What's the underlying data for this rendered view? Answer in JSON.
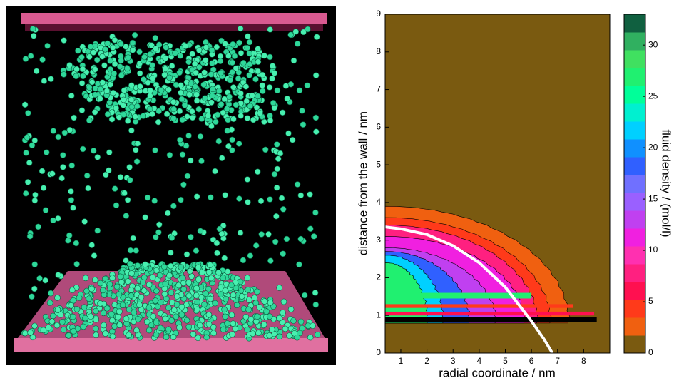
{
  "chart_data": {
    "type": "contour",
    "xlabel": "radial coordinate / nm",
    "ylabel": "distance from the wall / nm",
    "colorbar_label": "fluid density / (mol/l)",
    "xlim": [
      0.4,
      9
    ],
    "xticks": [
      1,
      2,
      3,
      4,
      5,
      6,
      7,
      8
    ],
    "ylim": [
      0,
      9
    ],
    "yticks": [
      0,
      1,
      2,
      3,
      4,
      5,
      6,
      7,
      8,
      9
    ],
    "clim": [
      0,
      33
    ],
    "cticks": [
      0,
      5,
      10,
      15,
      20,
      25,
      30
    ],
    "colormap": [
      "#7a5a10",
      "#f06010",
      "#ff3a1a",
      "#ff1050",
      "#ff2080",
      "#ff30b0",
      "#f020e0",
      "#c040f0",
      "#9a60ff",
      "#7070ff",
      "#3060ff",
      "#1090ff",
      "#00d0ff",
      "#00f0d0",
      "#00ff99",
      "#20f070",
      "#40e060",
      "#30b060",
      "#106040"
    ],
    "series": [
      {
        "name": "contact line",
        "color": "#ffffff",
        "x": [
          0.4,
          1,
          2,
          3,
          4,
          5,
          5.5,
          6,
          6.5,
          6.8
        ],
        "values": [
          3.35,
          3.3,
          3.15,
          2.85,
          2.4,
          1.75,
          1.3,
          0.85,
          0.35,
          0
        ]
      }
    ]
  }
}
